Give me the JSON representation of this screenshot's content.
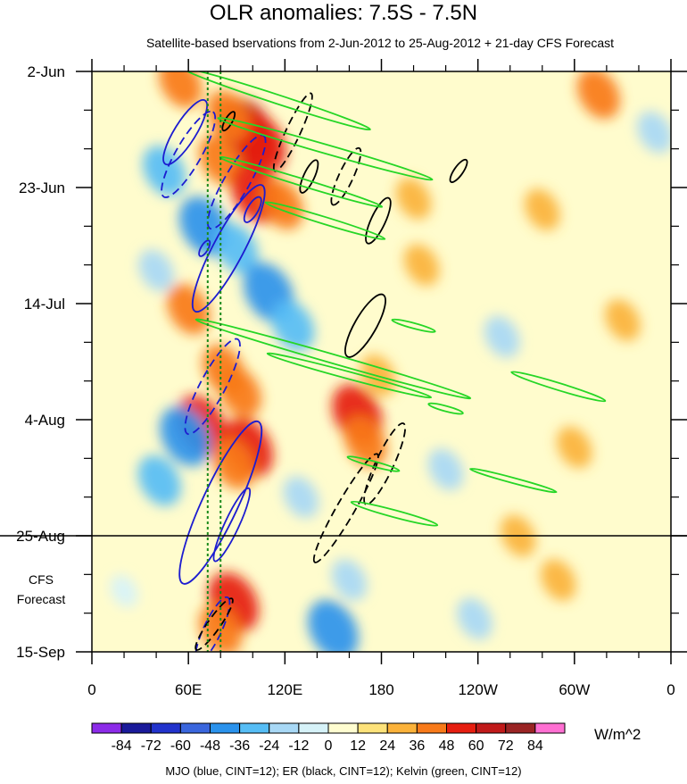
{
  "chart_data": {
    "type": "heatmap",
    "title": "OLR anomalies: 7.5S - 7.5N",
    "subtitle": "Satellite-based bservations from 2-Jun-2012 to 25-Aug-2012 + 21-day CFS Forecast",
    "xlabel": "",
    "ylabel": "",
    "units": "W/m^2",
    "x_ticks": [
      "0",
      "60E",
      "120E",
      "180",
      "120W",
      "60W",
      "0"
    ],
    "x_tick_values": [
      0,
      60,
      120,
      180,
      240,
      300,
      360
    ],
    "xlim": [
      0,
      360
    ],
    "y_ticks": [
      "2-Jun",
      "23-Jun",
      "14-Jul",
      "4-Aug",
      "25-Aug",
      "15-Sep"
    ],
    "y_tick_values": [
      "2012-06-02",
      "2012-06-23",
      "2012-07-14",
      "2012-08-04",
      "2012-08-25",
      "2012-09-15"
    ],
    "ylim": [
      "2012-06-02",
      "2012-09-15"
    ],
    "y_reversed": true,
    "observation_end": "2012-08-25",
    "forecast_label_lines": [
      "CFS",
      "Forecast"
    ],
    "reference_lines_lon": [
      72,
      80
    ],
    "colorbar": {
      "labels": [
        "-84",
        "-72",
        "-60",
        "-48",
        "-36",
        "-24",
        "-12",
        "0",
        "12",
        "24",
        "36",
        "48",
        "60",
        "72",
        "84"
      ],
      "colors": [
        "#8c2be8",
        "#1a1a9a",
        "#2233cc",
        "#3a66dd",
        "#2a92ec",
        "#56bdf5",
        "#a8d8f5",
        "#d6f2f8",
        "#fffdd0",
        "#fde27a",
        "#fbb23a",
        "#f87a1a",
        "#e61e10",
        "#c01a1a",
        "#9a2424",
        "#ff6fd2"
      ]
    },
    "footnote": "MJO (blue, CINT=12); ER (black, CINT=12); Kelvin (green, CINT=12)",
    "background_color": "#fffccd",
    "anomaly_blobs": [
      {
        "lon": 55,
        "date": "2012-06-04",
        "value": 36
      },
      {
        "lon": 96,
        "date": "2012-06-13",
        "value": 60
      },
      {
        "lon": 105,
        "date": "2012-06-15",
        "value": 48
      },
      {
        "lon": 85,
        "date": "2012-06-10",
        "value": 36
      },
      {
        "lon": 80,
        "date": "2012-06-18",
        "value": 36
      },
      {
        "lon": 102,
        "date": "2012-06-24",
        "value": 48
      },
      {
        "lon": 118,
        "date": "2012-06-26",
        "value": 36
      },
      {
        "lon": 45,
        "date": "2012-06-20",
        "value": -36
      },
      {
        "lon": 70,
        "date": "2012-06-30",
        "value": -48
      },
      {
        "lon": 90,
        "date": "2012-07-04",
        "value": -36
      },
      {
        "lon": 40,
        "date": "2012-07-08",
        "value": -24
      },
      {
        "lon": 60,
        "date": "2012-07-15",
        "value": 36
      },
      {
        "lon": 110,
        "date": "2012-07-12",
        "value": -48
      },
      {
        "lon": 125,
        "date": "2012-07-18",
        "value": -36
      },
      {
        "lon": 82,
        "date": "2012-07-26",
        "value": 36
      },
      {
        "lon": 68,
        "date": "2012-08-05",
        "value": 48
      },
      {
        "lon": 92,
        "date": "2012-07-30",
        "value": 36
      },
      {
        "lon": 97,
        "date": "2012-08-09",
        "value": 48
      },
      {
        "lon": 88,
        "date": "2012-08-12",
        "value": 36
      },
      {
        "lon": 165,
        "date": "2012-08-03",
        "value": 48
      },
      {
        "lon": 170,
        "date": "2012-08-08",
        "value": 36
      },
      {
        "lon": 178,
        "date": "2012-07-27",
        "value": 24
      },
      {
        "lon": 42,
        "date": "2012-08-15",
        "value": -36
      },
      {
        "lon": 58,
        "date": "2012-08-07",
        "value": -48
      },
      {
        "lon": 130,
        "date": "2012-08-18",
        "value": -24
      },
      {
        "lon": 88,
        "date": "2012-09-06",
        "value": 48
      },
      {
        "lon": 80,
        "date": "2012-09-11",
        "value": 36
      },
      {
        "lon": 150,
        "date": "2012-09-11",
        "value": -48
      },
      {
        "lon": 160,
        "date": "2012-09-02",
        "value": -24
      },
      {
        "lon": 20,
        "date": "2012-09-04",
        "value": -12
      },
      {
        "lon": 290,
        "date": "2012-09-02",
        "value": 24
      },
      {
        "lon": 315,
        "date": "2012-06-06",
        "value": 36
      },
      {
        "lon": 330,
        "date": "2012-07-17",
        "value": 24
      },
      {
        "lon": 280,
        "date": "2012-06-27",
        "value": 24
      },
      {
        "lon": 255,
        "date": "2012-07-20",
        "value": -24
      },
      {
        "lon": 300,
        "date": "2012-08-09",
        "value": 24
      },
      {
        "lon": 220,
        "date": "2012-08-13",
        "value": -24
      },
      {
        "lon": 350,
        "date": "2012-06-13",
        "value": -24
      },
      {
        "lon": 200,
        "date": "2012-06-25",
        "value": 24
      },
      {
        "lon": 238,
        "date": "2012-09-09",
        "value": -24
      },
      {
        "lon": 205,
        "date": "2012-07-07",
        "value": 24
      },
      {
        "lon": 265,
        "date": "2012-08-25",
        "value": 24
      }
    ],
    "contours": {
      "mjo": [
        {
          "lon": 58,
          "date": "2012-06-13",
          "rx": 42,
          "ry": 12,
          "angle": -58,
          "dashed": false
        },
        {
          "lon": 100,
          "date": "2012-06-27",
          "rx": 16,
          "ry": 6,
          "angle": -60,
          "dashed": false
        },
        {
          "lon": 85,
          "date": "2012-07-04",
          "rx": 80,
          "ry": 17,
          "angle": -62,
          "dashed": false
        },
        {
          "lon": 70,
          "date": "2012-07-04",
          "rx": 10,
          "ry": 4,
          "angle": -60,
          "dashed": false
        },
        {
          "lon": 60,
          "date": "2012-06-17",
          "rx": 55,
          "ry": 14,
          "angle": -60,
          "dashed": true
        },
        {
          "lon": 90,
          "date": "2012-06-22",
          "rx": 60,
          "ry": 14,
          "angle": -60,
          "dashed": true
        },
        {
          "lon": 75,
          "date": "2012-07-29",
          "rx": 60,
          "ry": 14,
          "angle": -62,
          "dashed": true
        },
        {
          "lon": 80,
          "date": "2012-08-19",
          "rx": 100,
          "ry": 20,
          "angle": -65,
          "dashed": false
        },
        {
          "lon": 87,
          "date": "2012-08-23",
          "rx": 45,
          "ry": 8,
          "angle": -65,
          "dashed": false
        },
        {
          "lon": 75,
          "date": "2012-09-11",
          "rx": 40,
          "ry": 10,
          "angle": -65,
          "dashed": true
        }
      ],
      "er": [
        {
          "lon": 125,
          "date": "2012-06-13",
          "rx": 48,
          "ry": 8,
          "angle": 115,
          "dashed": true
        },
        {
          "lon": 135,
          "date": "2012-06-21",
          "rx": 20,
          "ry": 6,
          "angle": 115,
          "dashed": false
        },
        {
          "lon": 158,
          "date": "2012-06-21",
          "rx": 35,
          "ry": 8,
          "angle": 115,
          "dashed": true
        },
        {
          "lon": 178,
          "date": "2012-06-29",
          "rx": 28,
          "ry": 8,
          "angle": 115,
          "dashed": false
        },
        {
          "lon": 170,
          "date": "2012-07-18",
          "rx": 40,
          "ry": 12,
          "angle": 120,
          "dashed": false
        },
        {
          "lon": 182,
          "date": "2012-08-12",
          "rx": 50,
          "ry": 10,
          "angle": 115,
          "dashed": true
        },
        {
          "lon": 158,
          "date": "2012-08-20",
          "rx": 70,
          "ry": 10,
          "angle": 120,
          "dashed": true
        },
        {
          "lon": 76,
          "date": "2012-09-10",
          "rx": 35,
          "ry": 7,
          "angle": 125,
          "dashed": true
        },
        {
          "lon": 85,
          "date": "2012-06-11",
          "rx": 12,
          "ry": 4,
          "angle": 120,
          "dashed": false
        },
        {
          "lon": 228,
          "date": "2012-06-20",
          "rx": 15,
          "ry": 5,
          "angle": 125,
          "dashed": false
        }
      ],
      "kelvin": [
        {
          "lon": 115,
          "date": "2012-06-07",
          "rx": 110,
          "ry": 5,
          "angle": 18,
          "dashed": false
        },
        {
          "lon": 145,
          "date": "2012-06-16",
          "rx": 125,
          "ry": 5,
          "angle": 16,
          "dashed": false
        },
        {
          "lon": 130,
          "date": "2012-06-22",
          "rx": 95,
          "ry": 4,
          "angle": 17,
          "dashed": false
        },
        {
          "lon": 145,
          "date": "2012-06-29",
          "rx": 70,
          "ry": 4,
          "angle": 17,
          "dashed": false
        },
        {
          "lon": 150,
          "date": "2012-07-24",
          "rx": 160,
          "ry": 5,
          "angle": 16,
          "dashed": false
        },
        {
          "lon": 160,
          "date": "2012-07-27",
          "rx": 95,
          "ry": 4,
          "angle": 15,
          "dashed": false
        },
        {
          "lon": 290,
          "date": "2012-07-29",
          "rx": 55,
          "ry": 4,
          "angle": 17,
          "dashed": false
        },
        {
          "lon": 175,
          "date": "2012-08-12",
          "rx": 30,
          "ry": 3,
          "angle": 15,
          "dashed": false
        },
        {
          "lon": 188,
          "date": "2012-08-21",
          "rx": 50,
          "ry": 4,
          "angle": 15,
          "dashed": false
        },
        {
          "lon": 262,
          "date": "2012-08-15",
          "rx": 50,
          "ry": 3,
          "angle": 15,
          "dashed": false
        },
        {
          "lon": 200,
          "date": "2012-07-18",
          "rx": 25,
          "ry": 3,
          "angle": 15,
          "dashed": false
        },
        {
          "lon": 220,
          "date": "2012-08-02",
          "rx": 20,
          "ry": 3,
          "angle": 15,
          "dashed": false
        }
      ]
    }
  }
}
